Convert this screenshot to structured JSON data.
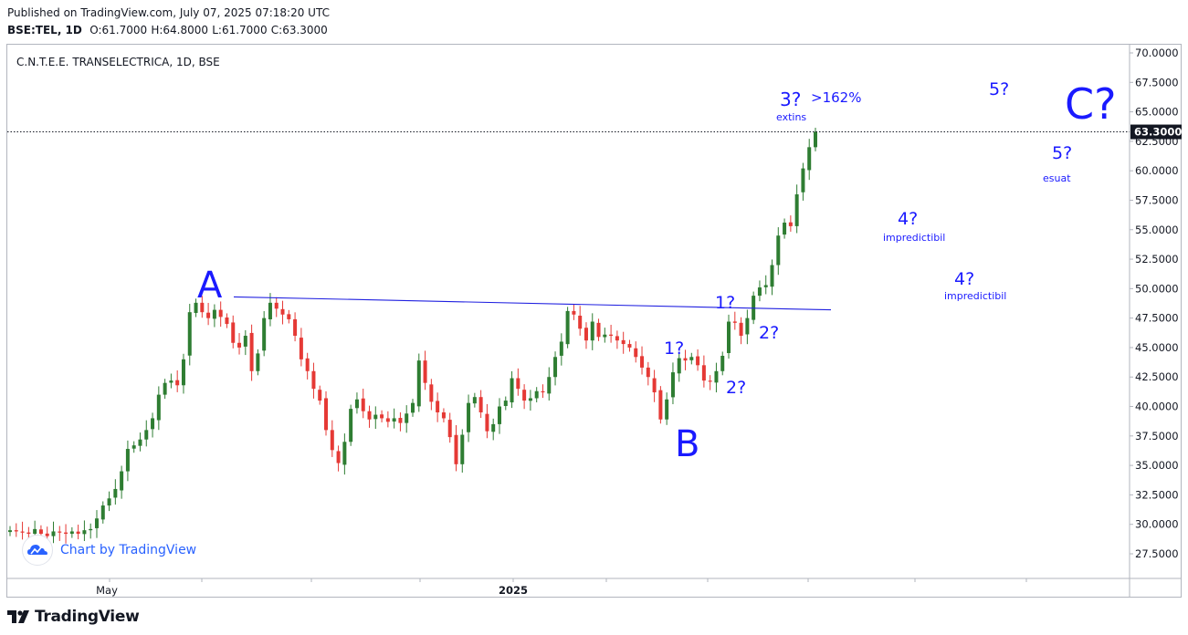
{
  "header": {
    "published": "Published on TradingView.com, July 07, 2025 07:18:20 UTC",
    "symbol": "BSE:TEL, 1D",
    "o_label": "O:",
    "o_value": "61.7000",
    "h_label": "H:",
    "h_value": "64.8000",
    "l_label": "L:",
    "l_value": "61.7000",
    "c_label": "C:",
    "c_value": "63.3000"
  },
  "chart_data": {
    "type": "candlestick",
    "title": "C.N.T.E.E. TRANSELECTRICA, 1D, BSE",
    "ylim": [
      25.0,
      71.0
    ],
    "y_ticks": [
      "70.0000",
      "67.5000",
      "65.0000",
      "62.5000",
      "60.0000",
      "57.5000",
      "55.0000",
      "52.5000",
      "50.0000",
      "47.5000",
      "45.0000",
      "42.5000",
      "40.0000",
      "37.5000",
      "35.0000",
      "32.5000",
      "30.0000",
      "27.5000"
    ],
    "x_tick_labels": [
      "May",
      "2025"
    ],
    "last_price_label": "63.3000",
    "last_price": 63.3,
    "up_color": "#2e7d32",
    "down_color": "#e53935",
    "close_path": [
      29.5,
      29.4,
      29.3,
      29.2,
      29.6,
      29.2,
      29.0,
      29.4,
      29.3,
      29.2,
      29.4,
      29.2,
      29.5,
      29.6,
      30.5,
      31.6,
      32.2,
      33.0,
      34.5,
      36.4,
      36.7,
      37.2,
      38.0,
      39.0,
      41.0,
      42.0,
      42.2,
      41.8,
      44.0,
      48.0,
      48.8,
      48.0,
      47.5,
      48.2,
      47.6,
      47.0,
      45.4,
      45.0,
      46.0,
      43.0,
      44.5,
      47.5,
      48.8,
      48.3,
      47.8,
      47.4,
      46.0,
      44.0,
      43.0,
      41.5,
      40.5,
      38.0,
      36.3,
      35.2,
      37.0,
      39.8,
      40.6,
      39.6,
      38.9,
      39.3,
      39.0,
      38.7,
      39.0,
      38.6,
      39.4,
      40.3,
      43.9,
      42.0,
      40.4,
      39.5,
      39.0,
      37.4,
      35.1,
      37.6,
      40.3,
      40.8,
      39.5,
      37.9,
      38.5,
      40.0,
      40.5,
      42.4,
      41.5,
      40.5,
      40.7,
      41.3,
      41.2,
      42.5,
      44.2,
      45.5,
      48.1,
      47.8,
      46.6,
      45.6,
      47.2,
      45.9,
      46.1,
      46.0,
      45.6,
      45.3,
      45.0,
      44.2,
      43.3,
      42.5,
      41.2,
      38.9,
      40.6,
      42.9,
      44.1,
      43.9,
      44.2,
      43.5,
      42.2,
      42.1,
      43.0,
      44.3,
      47.2,
      47.1,
      46.0,
      47.5,
      49.4,
      50.1,
      50.3,
      52.0,
      54.5,
      55.6,
      55.3,
      58.0,
      60.2,
      62.0,
      63.3
    ],
    "resistance_line": {
      "from": [
        0.0,
        49.3
      ],
      "to": [
        1.0,
        48.2
      ]
    },
    "annotations": [
      {
        "text": "A",
        "size": "xl"
      },
      {
        "text": "B",
        "size": "xl"
      },
      {
        "text": "C?",
        "size": "xxl"
      },
      {
        "text": "1?",
        "size": "m"
      },
      {
        "text": "2?",
        "size": "m"
      },
      {
        "text": "1?",
        "size": "m"
      },
      {
        "text": "2?",
        "size": "m"
      },
      {
        "text": "3?",
        "size": "m"
      },
      {
        "text": ">162%",
        "size": "s"
      },
      {
        "text": "extins",
        "size": "xs"
      },
      {
        "text": "4?",
        "size": "m"
      },
      {
        "text": "impredictibil",
        "size": "xs"
      },
      {
        "text": "4?",
        "size": "m"
      },
      {
        "text": "impredictibil",
        "size": "xs"
      },
      {
        "text": "5?",
        "size": "m"
      },
      {
        "text": "5?",
        "size": "m"
      },
      {
        "text": "esuat",
        "size": "xs"
      }
    ]
  },
  "watermark": {
    "text": "Chart by TradingView",
    "icon": "tradingview-cloud-icon"
  },
  "footer": {
    "logo_text": "TradingView",
    "icon": "tradingview-logo-icon"
  },
  "colors": {
    "annotation_blue": "#1a1aff",
    "line_blue": "#2020e0",
    "price_label_bg": "#131722"
  }
}
